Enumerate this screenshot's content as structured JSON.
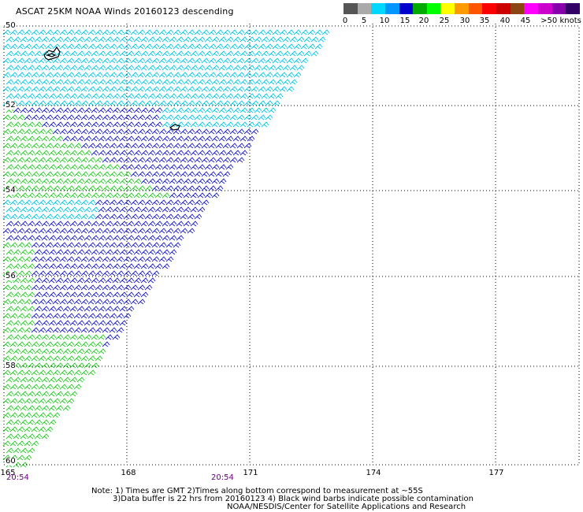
{
  "title": "ASCAT 25KM NOAA Winds 20160123 descending",
  "legend": {
    "colors": [
      "#555555",
      "#aaaaaa",
      "#00d8ff",
      "#0095ff",
      "#0000cc",
      "#00aa00",
      "#00ff00",
      "#ffff00",
      "#ff9900",
      "#ff5500",
      "#ff0000",
      "#cc0000",
      "#8b4513",
      "#ff00ff",
      "#cc00cc",
      "#8800aa",
      "#330066"
    ],
    "labels": [
      "0",
      "5",
      "10",
      "15",
      "20",
      "25",
      "30",
      "35",
      "40",
      "45",
      ">50 knots"
    ]
  },
  "latitudes": [
    "50",
    "52",
    "54",
    "56",
    "58",
    "60"
  ],
  "longitudes": [
    "165",
    "168",
    "171",
    "174",
    "177"
  ],
  "times": [
    "20:54",
    "20:54"
  ],
  "notes": {
    "line1": "Note: 1) Times are GMT 2)Times along bottom correspond to measurement at ~55S",
    "line2": "3)Data buffer is 22 hrs from 20160123 4) Black wind barbs indicate possible contamination",
    "line3": "NOAA/NESDIS/Center for Satellite Applications and Research"
  },
  "barb_colors": {
    "light_blue": "#00c8e8",
    "blue": "#1a1acc",
    "green": "#22cc22",
    "land": "#000000"
  }
}
